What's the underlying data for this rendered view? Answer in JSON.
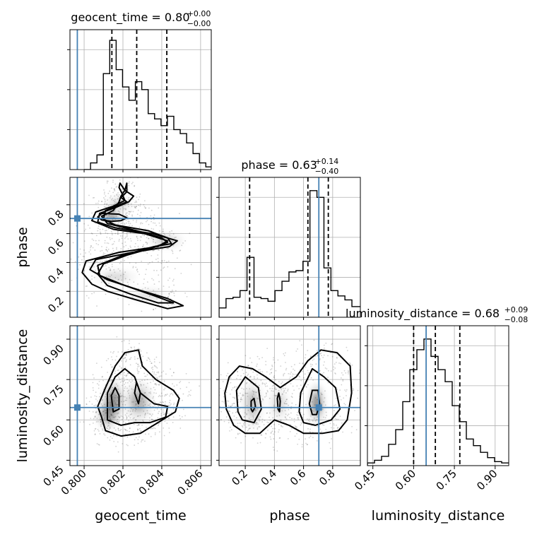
{
  "chart_data": {
    "type": "corner",
    "parameters": [
      "geocent_time",
      "phase",
      "luminosity_distance"
    ],
    "axis_labels": {
      "geocent_time": "geocent_time",
      "phase": "phase",
      "luminosity_distance": "luminosity_distance"
    },
    "titles": [
      {
        "param": "geocent_time",
        "text": "geocent_time = 0.80",
        "sup": "+0.00",
        "sub": "−0.00"
      },
      {
        "param": "phase",
        "text": "phase = 0.63",
        "sup": "+0.14",
        "sub": "−0.40"
      },
      {
        "param": "luminosity_distance",
        "text": "luminosity_distance = 0.68",
        "sup": "+0.09",
        "sub": "−0.08"
      }
    ],
    "ranges": {
      "geocent_time": [
        0.79927,
        0.80655
      ],
      "phase": [
        0.02,
        0.99
      ],
      "luminosity_distance": [
        0.43,
        0.95
      ]
    },
    "ticks": {
      "geocent_time": {
        "values": [
          0.8,
          0.802,
          0.804,
          0.806
        ],
        "labels": [
          "0.800",
          "0.802",
          "0.804",
          "0.806"
        ]
      },
      "phase": {
        "values": [
          0.2,
          0.4,
          0.6,
          0.8
        ],
        "labels": [
          "0.2",
          "0.4",
          "0.6",
          "0.8"
        ]
      },
      "luminosity_distance": {
        "values": [
          0.45,
          0.6,
          0.75,
          0.9
        ],
        "labels": [
          "0.45",
          "0.60",
          "0.75",
          "0.90"
        ]
      }
    },
    "truths": {
      "geocent_time": 0.79965,
      "phase": 0.705,
      "luminosity_distance": 0.646
    },
    "quantiles": {
      "geocent_time": [
        0.80143,
        0.80271,
        0.80426
      ],
      "phase": [
        0.23,
        0.63,
        0.77
      ],
      "luminosity_distance": [
        0.6,
        0.68,
        0.77
      ]
    },
    "histograms": {
      "geocent_time": {
        "bin_edges": [
          0.8,
          0.80033,
          0.80066,
          0.80099,
          0.80132,
          0.80165,
          0.80198,
          0.80231,
          0.80264,
          0.80297,
          0.8033,
          0.80363,
          0.80396,
          0.80429,
          0.80462,
          0.80495,
          0.80528,
          0.80561,
          0.80594,
          0.80627,
          0.8066
        ],
        "counts": [
          0,
          0.05,
          0.11,
          0.72,
          0.97,
          0.75,
          0.62,
          0.52,
          0.66,
          0.6,
          0.42,
          0.38,
          0.33,
          0.4,
          0.3,
          0.27,
          0.2,
          0.12,
          0.05,
          0.02
        ]
      },
      "phase": {
        "bin_edges": [
          0.02,
          0.068,
          0.116,
          0.164,
          0.212,
          0.26,
          0.308,
          0.356,
          0.404,
          0.452,
          0.5,
          0.548,
          0.596,
          0.644,
          0.692,
          0.74,
          0.788,
          0.836,
          0.884,
          0.932,
          0.99
        ],
        "counts": [
          0.07,
          0.14,
          0.15,
          0.2,
          0.45,
          0.15,
          0.14,
          0.12,
          0.2,
          0.27,
          0.34,
          0.35,
          0.42,
          0.95,
          0.9,
          0.37,
          0.2,
          0.16,
          0.13,
          0.08
        ]
      },
      "luminosity_distance": {
        "bin_edges": [
          0.43,
          0.456,
          0.482,
          0.508,
          0.534,
          0.56,
          0.586,
          0.612,
          0.638,
          0.664,
          0.69,
          0.716,
          0.742,
          0.768,
          0.794,
          0.82,
          0.846,
          0.872,
          0.898,
          0.924,
          0.95
        ],
        "counts": [
          0.02,
          0.04,
          0.07,
          0.16,
          0.27,
          0.48,
          0.72,
          0.87,
          0.95,
          0.82,
          0.72,
          0.63,
          0.45,
          0.33,
          0.2,
          0.15,
          0.1,
          0.06,
          0.03,
          0.02
        ]
      }
    },
    "contours": {
      "phase_vs_geocent_time": [
        [
          [
            0.80185,
            0.95
          ],
          [
            0.8021,
            0.9
          ],
          [
            0.80255,
            0.86
          ],
          [
            0.8023,
            0.82
          ],
          [
            0.8016,
            0.78
          ],
          [
            0.8008,
            0.74
          ],
          [
            0.8007,
            0.68
          ],
          [
            0.8016,
            0.64
          ],
          [
            0.8035,
            0.6
          ],
          [
            0.8048,
            0.55
          ],
          [
            0.8044,
            0.51
          ],
          [
            0.8025,
            0.47
          ],
          [
            0.8006,
            0.42
          ],
          [
            0.8003,
            0.35
          ],
          [
            0.8012,
            0.28
          ],
          [
            0.8028,
            0.21
          ],
          [
            0.8043,
            0.15
          ],
          [
            0.8051,
            0.1
          ],
          [
            0.8043,
            0.08
          ],
          [
            0.8027,
            0.14
          ],
          [
            0.8012,
            0.2
          ],
          [
            0.8004,
            0.25
          ],
          [
            0.7999,
            0.33
          ],
          [
            0.8001,
            0.41
          ],
          [
            0.8018,
            0.47
          ],
          [
            0.8038,
            0.51
          ],
          [
            0.8043,
            0.55
          ],
          [
            0.8031,
            0.6
          ],
          [
            0.8015,
            0.63
          ],
          [
            0.8004,
            0.69
          ],
          [
            0.8006,
            0.75
          ],
          [
            0.8015,
            0.79
          ],
          [
            0.8021,
            0.83
          ],
          [
            0.80195,
            0.88
          ],
          [
            0.8018,
            0.92
          ],
          [
            0.80185,
            0.95
          ]
        ],
        [
          [
            0.8022,
            0.95
          ],
          [
            0.8022,
            0.89
          ],
          [
            0.8019,
            0.85
          ],
          [
            0.8022,
            0.82
          ],
          [
            0.8011,
            0.76
          ],
          [
            0.801,
            0.7
          ],
          [
            0.8016,
            0.66
          ],
          [
            0.8033,
            0.62
          ],
          [
            0.8043,
            0.57
          ],
          [
            0.8045,
            0.53
          ],
          [
            0.8036,
            0.51
          ],
          [
            0.802,
            0.45
          ],
          [
            0.8007,
            0.38
          ],
          [
            0.8008,
            0.31
          ],
          [
            0.8021,
            0.24
          ],
          [
            0.8036,
            0.17
          ],
          [
            0.8046,
            0.12
          ],
          [
            0.8038,
            0.12
          ],
          [
            0.8024,
            0.18
          ],
          [
            0.8012,
            0.24
          ],
          [
            0.8007,
            0.32
          ],
          [
            0.801,
            0.39
          ],
          [
            0.8022,
            0.45
          ],
          [
            0.8035,
            0.5
          ],
          [
            0.8043,
            0.54
          ],
          [
            0.804,
            0.57
          ],
          [
            0.8027,
            0.62
          ],
          [
            0.8012,
            0.67
          ],
          [
            0.8009,
            0.72
          ],
          [
            0.8015,
            0.76
          ],
          [
            0.8018,
            0.82
          ],
          [
            0.8019,
            0.86
          ],
          [
            0.8021,
            0.9
          ],
          [
            0.8022,
            0.95
          ]
        ],
        [
          [
            0.8009,
            0.74
          ],
          [
            0.8018,
            0.735
          ],
          [
            0.8022,
            0.71
          ],
          [
            0.8019,
            0.69
          ],
          [
            0.8014,
            0.685
          ],
          [
            0.8009,
            0.695
          ],
          [
            0.8007,
            0.715
          ],
          [
            0.8009,
            0.74
          ]
        ]
      ],
      "luminosity_distance_vs_geocent_time": [
        [
          [
            0.8009,
            0.61
          ],
          [
            0.8007,
            0.65
          ],
          [
            0.8011,
            0.72
          ],
          [
            0.8016,
            0.8
          ],
          [
            0.8021,
            0.85
          ],
          [
            0.8028,
            0.86
          ],
          [
            0.803,
            0.8
          ],
          [
            0.8037,
            0.75
          ],
          [
            0.8046,
            0.71
          ],
          [
            0.8049,
            0.68
          ],
          [
            0.8047,
            0.63
          ],
          [
            0.8038,
            0.59
          ],
          [
            0.8029,
            0.55
          ],
          [
            0.8019,
            0.54
          ],
          [
            0.8011,
            0.56
          ],
          [
            0.8009,
            0.61
          ]
        ],
        [
          [
            0.8012,
            0.6
          ],
          [
            0.8012,
            0.7
          ],
          [
            0.8016,
            0.76
          ],
          [
            0.8021,
            0.79
          ],
          [
            0.8026,
            0.76
          ],
          [
            0.8029,
            0.7
          ],
          [
            0.8036,
            0.66
          ],
          [
            0.8043,
            0.65
          ],
          [
            0.8042,
            0.61
          ],
          [
            0.8034,
            0.59
          ],
          [
            0.8026,
            0.59
          ],
          [
            0.8019,
            0.58
          ],
          [
            0.8012,
            0.6
          ]
        ],
        [
          [
            0.8015,
            0.63
          ],
          [
            0.8014,
            0.69
          ],
          [
            0.8016,
            0.72
          ],
          [
            0.8018,
            0.69
          ],
          [
            0.8018,
            0.64
          ],
          [
            0.8015,
            0.63
          ]
        ],
        [
          [
            0.8026,
            0.7
          ],
          [
            0.8027,
            0.74
          ],
          [
            0.8029,
            0.7
          ],
          [
            0.8028,
            0.66
          ],
          [
            0.8026,
            0.7
          ]
        ]
      ],
      "luminosity_distance_vs_phase": [
        [
          [
            0.07,
            0.64
          ],
          [
            0.06,
            0.7
          ],
          [
            0.09,
            0.76
          ],
          [
            0.16,
            0.8
          ],
          [
            0.25,
            0.79
          ],
          [
            0.34,
            0.76
          ],
          [
            0.44,
            0.72
          ],
          [
            0.55,
            0.76
          ],
          [
            0.63,
            0.82
          ],
          [
            0.72,
            0.86
          ],
          [
            0.83,
            0.85
          ],
          [
            0.92,
            0.8
          ],
          [
            0.93,
            0.7
          ],
          [
            0.9,
            0.6
          ],
          [
            0.84,
            0.56
          ],
          [
            0.73,
            0.55
          ],
          [
            0.6,
            0.55
          ],
          [
            0.5,
            0.58
          ],
          [
            0.4,
            0.6
          ],
          [
            0.3,
            0.55
          ],
          [
            0.2,
            0.55
          ],
          [
            0.12,
            0.58
          ],
          [
            0.07,
            0.64
          ]
        ],
        [
          [
            0.15,
            0.63
          ],
          [
            0.14,
            0.71
          ],
          [
            0.2,
            0.76
          ],
          [
            0.29,
            0.72
          ],
          [
            0.31,
            0.64
          ],
          [
            0.26,
            0.59
          ],
          [
            0.18,
            0.6
          ],
          [
            0.15,
            0.63
          ]
        ],
        [
          [
            0.57,
            0.63
          ],
          [
            0.58,
            0.7
          ],
          [
            0.66,
            0.79
          ],
          [
            0.74,
            0.76
          ],
          [
            0.82,
            0.72
          ],
          [
            0.85,
            0.64
          ],
          [
            0.79,
            0.6
          ],
          [
            0.68,
            0.58
          ],
          [
            0.6,
            0.59
          ],
          [
            0.57,
            0.63
          ]
        ],
        [
          [
            0.66,
            0.62
          ],
          [
            0.64,
            0.66
          ],
          [
            0.66,
            0.71
          ],
          [
            0.7,
            0.71
          ],
          [
            0.71,
            0.66
          ],
          [
            0.69,
            0.62
          ],
          [
            0.66,
            0.62
          ]
        ],
        [
          [
            0.24,
            0.64
          ],
          [
            0.24,
            0.67
          ],
          [
            0.26,
            0.68
          ],
          [
            0.27,
            0.65
          ],
          [
            0.25,
            0.63
          ],
          [
            0.24,
            0.64
          ]
        ],
        [
          [
            0.425,
            0.64
          ],
          [
            0.42,
            0.68
          ],
          [
            0.43,
            0.7
          ],
          [
            0.44,
            0.67
          ],
          [
            0.435,
            0.63
          ],
          [
            0.425,
            0.64
          ]
        ]
      ]
    },
    "density_blobs": {
      "phase_vs_geocent_time": [
        {
          "x": 0.8014,
          "y": 0.715,
          "sx": 0.0003,
          "sy": 0.02,
          "w": 1.0
        },
        {
          "x": 0.8042,
          "y": 0.55,
          "sx": 0.0005,
          "sy": 0.03,
          "w": 0.4
        },
        {
          "x": 0.8018,
          "y": 0.8,
          "sx": 0.0004,
          "sy": 0.04,
          "w": 0.3
        },
        {
          "x": 0.8016,
          "y": 0.3,
          "sx": 0.0006,
          "sy": 0.03,
          "w": 0.3
        },
        {
          "x": 0.8033,
          "y": 0.17,
          "sx": 0.0006,
          "sy": 0.03,
          "w": 0.25
        }
      ],
      "luminosity_distance_vs_geocent_time": [
        {
          "x": 0.8015,
          "y": 0.67,
          "sx": 0.0003,
          "sy": 0.04,
          "w": 1.0
        },
        {
          "x": 0.8028,
          "y": 0.67,
          "sx": 0.0004,
          "sy": 0.04,
          "w": 0.7
        },
        {
          "x": 0.8012,
          "y": 0.62,
          "sx": 0.0003,
          "sy": 0.03,
          "w": 0.8
        }
      ],
      "luminosity_distance_vs_phase": [
        {
          "x": 0.69,
          "y": 0.66,
          "sx": 0.03,
          "sy": 0.04,
          "w": 1.0
        },
        {
          "x": 0.25,
          "y": 0.66,
          "sx": 0.04,
          "sy": 0.05,
          "w": 0.5
        },
        {
          "x": 0.43,
          "y": 0.66,
          "sx": 0.04,
          "sy": 0.04,
          "w": 0.3
        }
      ]
    },
    "colors": {
      "truth": "#4682b4",
      "hist": "#000000",
      "grid": "#b0b0b0"
    },
    "grid": true
  }
}
